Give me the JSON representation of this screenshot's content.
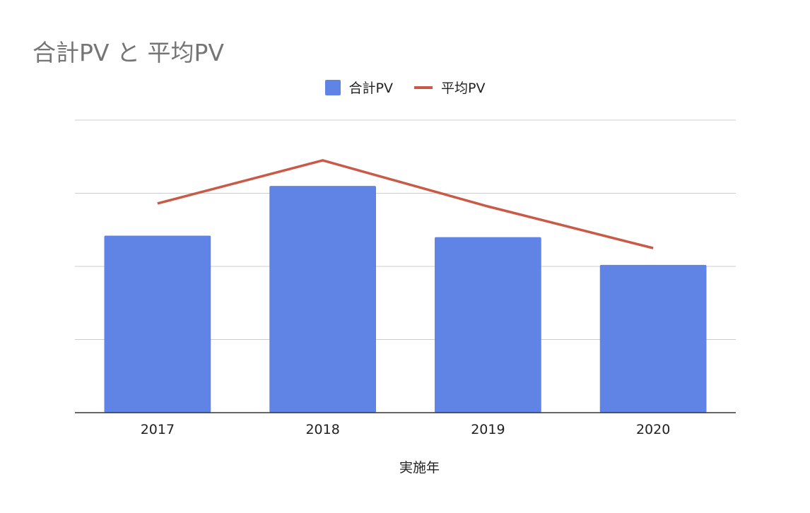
{
  "chart_data": {
    "type": "bar",
    "title": "合計PV と 平均PV",
    "xlabel": "実施年",
    "ylabel": "",
    "categories": [
      "2017",
      "2018",
      "2019",
      "2020"
    ],
    "series": [
      {
        "name": "合計PV",
        "type": "bar",
        "color": "#5f84e6",
        "values": [
          2.42,
          3.1,
          2.4,
          2.02
        ]
      },
      {
        "name": "平均PV",
        "type": "line",
        "color": "#c95a47",
        "values": [
          2.86,
          3.45,
          2.82,
          2.25
        ]
      }
    ],
    "ylim": [
      0,
      4
    ],
    "gridlines": 4,
    "grid": true,
    "legend": "top-center",
    "y_tick_labels_visible": false
  }
}
